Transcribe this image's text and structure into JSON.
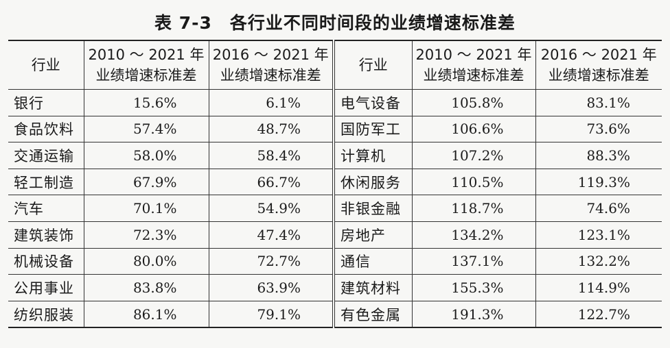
{
  "caption": {
    "label": "表 7-3",
    "title": "各行业不同时间段的业绩增速标准差"
  },
  "headers": {
    "industry": "行业",
    "period1_line1": "2010 ～ 2021 年",
    "period1_line2": "业绩增速标准差",
    "period2_line1": "2016 ～ 2021 年",
    "period2_line2": "业绩增速标准差"
  },
  "left_rows": [
    {
      "industry": "银行",
      "v2010_2021": "15.6%",
      "v2016_2021": "6.1%"
    },
    {
      "industry": "食品饮料",
      "v2010_2021": "57.4%",
      "v2016_2021": "48.7%"
    },
    {
      "industry": "交通运输",
      "v2010_2021": "58.0%",
      "v2016_2021": "58.4%"
    },
    {
      "industry": "轻工制造",
      "v2010_2021": "67.9%",
      "v2016_2021": "66.7%"
    },
    {
      "industry": "汽车",
      "v2010_2021": "70.1%",
      "v2016_2021": "54.9%"
    },
    {
      "industry": "建筑装饰",
      "v2010_2021": "72.3%",
      "v2016_2021": "47.4%"
    },
    {
      "industry": "机械设备",
      "v2010_2021": "80.0%",
      "v2016_2021": "72.7%"
    },
    {
      "industry": "公用事业",
      "v2010_2021": "83.8%",
      "v2016_2021": "63.9%"
    },
    {
      "industry": "纺织服装",
      "v2010_2021": "86.1%",
      "v2016_2021": "79.1%"
    }
  ],
  "right_rows": [
    {
      "industry": "电气设备",
      "v2010_2021": "105.8%",
      "v2016_2021": "83.1%"
    },
    {
      "industry": "国防军工",
      "v2010_2021": "106.6%",
      "v2016_2021": "73.6%"
    },
    {
      "industry": "计算机",
      "v2010_2021": "107.2%",
      "v2016_2021": "88.3%"
    },
    {
      "industry": "休闲服务",
      "v2010_2021": "110.5%",
      "v2016_2021": "119.3%"
    },
    {
      "industry": "非银金融",
      "v2010_2021": "118.7%",
      "v2016_2021": "74.6%"
    },
    {
      "industry": "房地产",
      "v2010_2021": "134.2%",
      "v2016_2021": "123.1%"
    },
    {
      "industry": "通信",
      "v2010_2021": "137.1%",
      "v2016_2021": "132.2%"
    },
    {
      "industry": "建筑材料",
      "v2010_2021": "155.3%",
      "v2016_2021": "114.9%"
    },
    {
      "industry": "有色金属",
      "v2010_2021": "191.3%",
      "v2016_2021": "122.7%"
    }
  ]
}
